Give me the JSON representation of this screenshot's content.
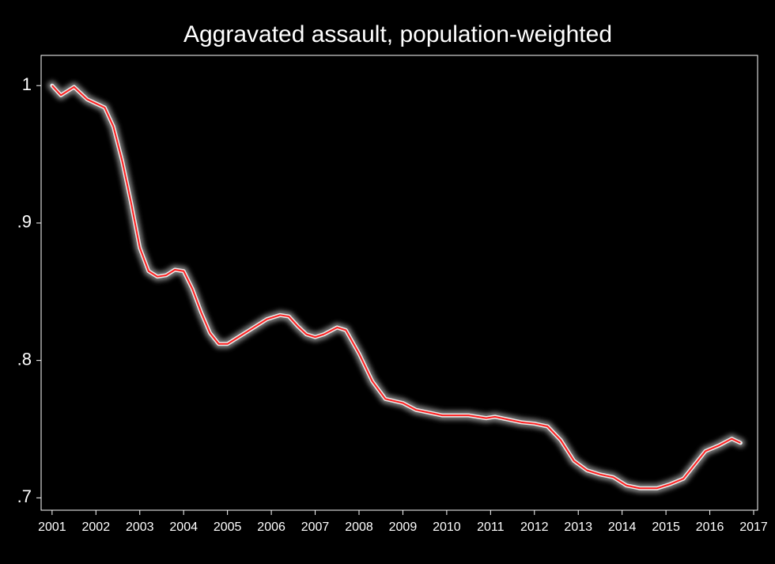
{
  "chart_data": {
    "type": "line",
    "title": "Aggravated assault, population-weighted",
    "x": [
      2001.0,
      2001.2,
      2001.5,
      2001.8,
      2002.0,
      2002.2,
      2002.4,
      2002.6,
      2002.8,
      2003.0,
      2003.2,
      2003.4,
      2003.6,
      2003.8,
      2004.0,
      2004.2,
      2004.4,
      2004.6,
      2004.8,
      2005.0,
      2005.3,
      2005.6,
      2005.9,
      2006.2,
      2006.4,
      2006.6,
      2006.8,
      2007.0,
      2007.2,
      2007.5,
      2007.7,
      2008.0,
      2008.3,
      2008.6,
      2009.0,
      2009.3,
      2009.6,
      2009.9,
      2010.1,
      2010.5,
      2010.9,
      2011.1,
      2011.4,
      2011.7,
      2012.0,
      2012.3,
      2012.6,
      2012.9,
      2013.2,
      2013.5,
      2013.8,
      2014.1,
      2014.4,
      2014.8,
      2015.1,
      2015.4,
      2015.7,
      2015.9,
      2016.2,
      2016.5,
      2016.7
    ],
    "series": [
      {
        "color": "#ff2020",
        "values": [
          1.0,
          0.993,
          0.999,
          0.99,
          0.987,
          0.984,
          0.97,
          0.945,
          0.915,
          0.882,
          0.865,
          0.861,
          0.862,
          0.866,
          0.865,
          0.852,
          0.835,
          0.82,
          0.812,
          0.812,
          0.818,
          0.824,
          0.83,
          0.833,
          0.832,
          0.825,
          0.819,
          0.817,
          0.819,
          0.824,
          0.822,
          0.805,
          0.785,
          0.772,
          0.769,
          0.764,
          0.762,
          0.76,
          0.76,
          0.76,
          0.758,
          0.759,
          0.757,
          0.755,
          0.754,
          0.752,
          0.742,
          0.727,
          0.72,
          0.717,
          0.715,
          0.709,
          0.707,
          0.707,
          0.71,
          0.714,
          0.726,
          0.734,
          0.738,
          0.743,
          0.74
        ]
      }
    ],
    "xlim": [
      2000.75,
      2017.09
    ],
    "ylim": [
      0.691,
      1.022
    ],
    "xticks": [
      2001,
      2002,
      2003,
      2004,
      2005,
      2006,
      2007,
      2008,
      2009,
      2010,
      2011,
      2012,
      2013,
      2014,
      2015,
      2016,
      2017
    ],
    "yticks": [
      {
        "value": 0.7,
        "label": ".7"
      },
      {
        "value": 0.8,
        "label": ".8"
      },
      {
        "value": 0.9,
        "label": ".9"
      },
      1
    ]
  }
}
